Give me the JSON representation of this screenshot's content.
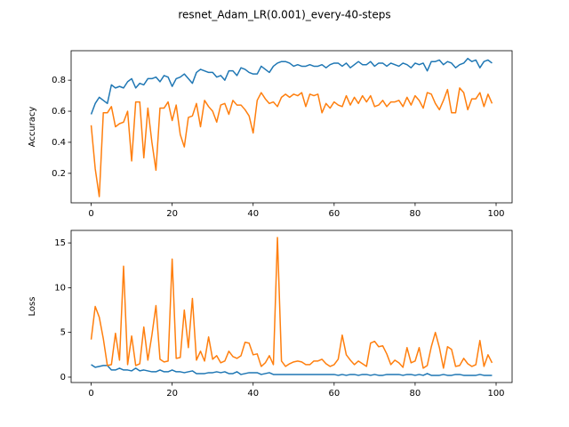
{
  "chart_data": [
    {
      "type": "line",
      "title": "resnet_Adam_LR(0.001)_every-40-steps",
      "ylabel": "Accuracy",
      "x": [
        0,
        1,
        2,
        3,
        4,
        5,
        6,
        7,
        8,
        9,
        10,
        11,
        12,
        13,
        14,
        15,
        16,
        17,
        18,
        19,
        20,
        21,
        22,
        23,
        24,
        25,
        26,
        27,
        28,
        29,
        30,
        31,
        32,
        33,
        34,
        35,
        36,
        37,
        38,
        39,
        40,
        41,
        42,
        43,
        44,
        45,
        46,
        47,
        48,
        49,
        50,
        51,
        52,
        53,
        54,
        55,
        56,
        57,
        58,
        59,
        60,
        61,
        62,
        63,
        64,
        65,
        66,
        67,
        68,
        69,
        70,
        71,
        72,
        73,
        74,
        75,
        76,
        77,
        78,
        79,
        80,
        81,
        82,
        83,
        84,
        85,
        86,
        87,
        88,
        89,
        90,
        91,
        92,
        93,
        94,
        95,
        96,
        97,
        98,
        99
      ],
      "series": [
        {
          "color": "#1f77b4",
          "values": [
            0.58,
            0.65,
            0.69,
            0.67,
            0.65,
            0.77,
            0.75,
            0.76,
            0.75,
            0.79,
            0.81,
            0.75,
            0.78,
            0.77,
            0.81,
            0.81,
            0.82,
            0.79,
            0.83,
            0.82,
            0.76,
            0.81,
            0.82,
            0.84,
            0.81,
            0.78,
            0.85,
            0.87,
            0.86,
            0.85,
            0.85,
            0.82,
            0.83,
            0.8,
            0.86,
            0.86,
            0.83,
            0.88,
            0.87,
            0.85,
            0.84,
            0.84,
            0.89,
            0.87,
            0.85,
            0.89,
            0.91,
            0.92,
            0.92,
            0.91,
            0.89,
            0.9,
            0.89,
            0.89,
            0.9,
            0.89,
            0.89,
            0.9,
            0.88,
            0.9,
            0.91,
            0.91,
            0.89,
            0.91,
            0.88,
            0.9,
            0.92,
            0.9,
            0.9,
            0.92,
            0.89,
            0.91,
            0.91,
            0.89,
            0.91,
            0.9,
            0.89,
            0.91,
            0.9,
            0.88,
            0.91,
            0.9,
            0.91,
            0.86,
            0.92,
            0.92,
            0.93,
            0.9,
            0.92,
            0.91,
            0.88,
            0.9,
            0.91,
            0.94,
            0.92,
            0.93,
            0.88,
            0.92,
            0.93,
            0.91
          ]
        },
        {
          "color": "#ff7f0e",
          "values": [
            0.51,
            0.23,
            0.05,
            0.59,
            0.59,
            0.63,
            0.5,
            0.52,
            0.53,
            0.6,
            0.28,
            0.66,
            0.66,
            0.3,
            0.62,
            0.4,
            0.22,
            0.62,
            0.62,
            0.66,
            0.54,
            0.64,
            0.45,
            0.37,
            0.56,
            0.57,
            0.65,
            0.5,
            0.67,
            0.63,
            0.6,
            0.53,
            0.64,
            0.65,
            0.58,
            0.67,
            0.64,
            0.64,
            0.61,
            0.57,
            0.46,
            0.67,
            0.72,
            0.68,
            0.65,
            0.66,
            0.63,
            0.69,
            0.71,
            0.69,
            0.71,
            0.7,
            0.72,
            0.63,
            0.71,
            0.7,
            0.71,
            0.59,
            0.65,
            0.62,
            0.66,
            0.64,
            0.63,
            0.7,
            0.64,
            0.69,
            0.65,
            0.7,
            0.66,
            0.7,
            0.63,
            0.64,
            0.67,
            0.63,
            0.66,
            0.66,
            0.67,
            0.63,
            0.69,
            0.64,
            0.7,
            0.67,
            0.62,
            0.72,
            0.71,
            0.65,
            0.61,
            0.67,
            0.74,
            0.59,
            0.59,
            0.75,
            0.72,
            0.61,
            0.68,
            0.68,
            0.72,
            0.63,
            0.71,
            0.65
          ]
        }
      ],
      "xlim": [
        -4.95,
        103.95
      ],
      "xticks": [
        0,
        20,
        40,
        60,
        80,
        100
      ],
      "ylim": [
        0.01,
        0.99
      ],
      "yticks": [
        0.2,
        0.4,
        0.6,
        0.8
      ]
    },
    {
      "type": "line",
      "ylabel": "Loss",
      "x": [
        0,
        1,
        2,
        3,
        4,
        5,
        6,
        7,
        8,
        9,
        10,
        11,
        12,
        13,
        14,
        15,
        16,
        17,
        18,
        19,
        20,
        21,
        22,
        23,
        24,
        25,
        26,
        27,
        28,
        29,
        30,
        31,
        32,
        33,
        34,
        35,
        36,
        37,
        38,
        39,
        40,
        41,
        42,
        43,
        44,
        45,
        46,
        47,
        48,
        49,
        50,
        51,
        52,
        53,
        54,
        55,
        56,
        57,
        58,
        59,
        60,
        61,
        62,
        63,
        64,
        65,
        66,
        67,
        68,
        69,
        70,
        71,
        72,
        73,
        74,
        75,
        76,
        77,
        78,
        79,
        80,
        81,
        82,
        83,
        84,
        85,
        86,
        87,
        88,
        89,
        90,
        91,
        92,
        93,
        94,
        95,
        96,
        97,
        98,
        99
      ],
      "series": [
        {
          "color": "#1f77b4",
          "values": [
            1.4,
            1.1,
            1.2,
            1.3,
            1.3,
            0.8,
            0.8,
            1.0,
            0.8,
            0.8,
            0.7,
            1.0,
            0.7,
            0.8,
            0.7,
            0.6,
            0.6,
            0.8,
            0.6,
            0.6,
            0.8,
            0.6,
            0.6,
            0.5,
            0.6,
            0.7,
            0.4,
            0.4,
            0.4,
            0.5,
            0.5,
            0.6,
            0.5,
            0.6,
            0.4,
            0.4,
            0.6,
            0.3,
            0.4,
            0.5,
            0.5,
            0.5,
            0.3,
            0.4,
            0.5,
            0.3,
            0.3,
            0.3,
            0.3,
            0.3,
            0.3,
            0.3,
            0.3,
            0.3,
            0.3,
            0.3,
            0.3,
            0.3,
            0.3,
            0.3,
            0.3,
            0.2,
            0.3,
            0.2,
            0.3,
            0.3,
            0.2,
            0.3,
            0.3,
            0.2,
            0.3,
            0.2,
            0.2,
            0.3,
            0.3,
            0.3,
            0.3,
            0.2,
            0.3,
            0.3,
            0.2,
            0.3,
            0.2,
            0.4,
            0.2,
            0.2,
            0.2,
            0.3,
            0.2,
            0.2,
            0.3,
            0.3,
            0.2,
            0.2,
            0.2,
            0.2,
            0.3,
            0.2,
            0.2,
            0.2
          ]
        },
        {
          "color": "#ff7f0e",
          "values": [
            4.2,
            7.9,
            6.7,
            4.3,
            1.3,
            1.4,
            4.9,
            1.9,
            12.4,
            1.4,
            4.6,
            1.3,
            1.5,
            5.6,
            1.9,
            4.7,
            8.0,
            2.0,
            1.7,
            1.8,
            13.2,
            2.1,
            2.2,
            7.5,
            3.3,
            8.8,
            1.9,
            2.9,
            1.8,
            4.5,
            2.0,
            2.4,
            1.6,
            1.8,
            2.9,
            2.3,
            2.1,
            2.4,
            3.9,
            3.8,
            2.5,
            2.6,
            1.2,
            1.6,
            2.4,
            1.4,
            15.6,
            1.8,
            1.2,
            1.5,
            1.7,
            1.8,
            1.7,
            1.4,
            1.4,
            1.8,
            1.8,
            2.0,
            1.5,
            1.2,
            1.4,
            2.0,
            4.7,
            2.5,
            1.9,
            1.4,
            1.8,
            1.5,
            1.2,
            3.8,
            4.0,
            3.4,
            3.5,
            2.6,
            1.4,
            1.9,
            1.6,
            1.1,
            3.3,
            1.6,
            1.8,
            3.3,
            1.0,
            1.3,
            3.4,
            5.0,
            3.3,
            1.0,
            3.4,
            3.1,
            1.2,
            1.3,
            2.1,
            1.5,
            1.2,
            1.4,
            4.1,
            1.2,
            2.5,
            1.6
          ]
        }
      ],
      "xlim": [
        -4.95,
        103.95
      ],
      "xticks": [
        0,
        20,
        40,
        60,
        80,
        100
      ],
      "ylim": [
        -0.6,
        16.4
      ],
      "yticks": [
        0,
        5,
        10,
        15
      ]
    }
  ]
}
